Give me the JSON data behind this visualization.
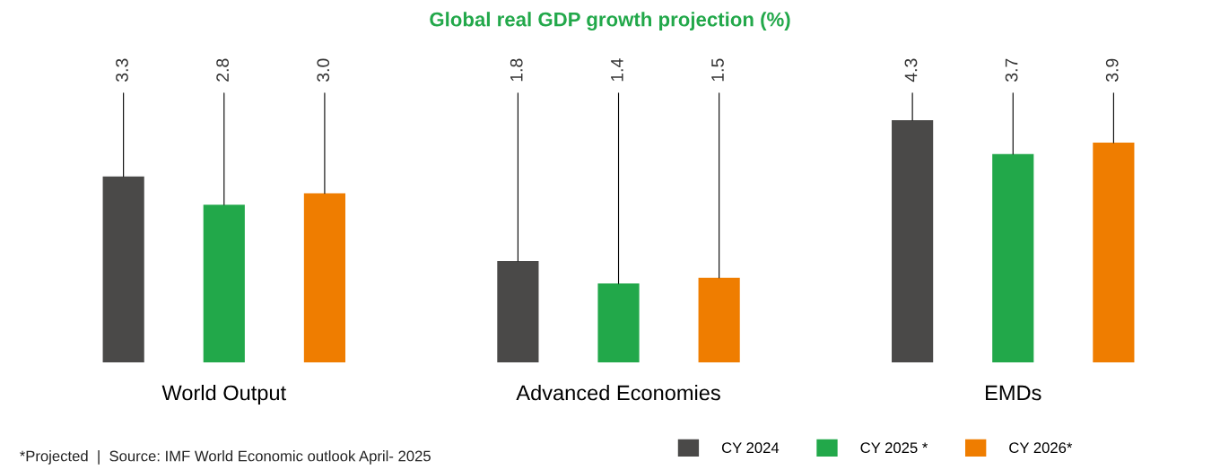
{
  "chart_data": {
    "type": "bar",
    "title": "Global real GDP growth projection (%)",
    "categories": [
      "World Output",
      "Advanced Economies",
      "EMDs"
    ],
    "series": [
      {
        "name": "CY 2024",
        "color": "#4a4948",
        "values": [
          3.3,
          1.8,
          4.3
        ],
        "value_labels": [
          "3.3",
          "1.8",
          "4.3"
        ]
      },
      {
        "name": "CY 2025 *",
        "color": "#22a84a",
        "values": [
          2.8,
          1.4,
          3.7
        ],
        "value_labels": [
          "2.8",
          "1.4",
          "3.7"
        ]
      },
      {
        "name": "CY 2026*",
        "color": "#ef7d00",
        "values": [
          3.0,
          1.5,
          3.9
        ],
        "value_labels": [
          "3.0",
          "1.5",
          "3.9"
        ]
      }
    ],
    "legend": "bottom right",
    "annotations": [
      "*Projected  |  Source: IMF World Economic outlook April- 2025"
    ]
  }
}
